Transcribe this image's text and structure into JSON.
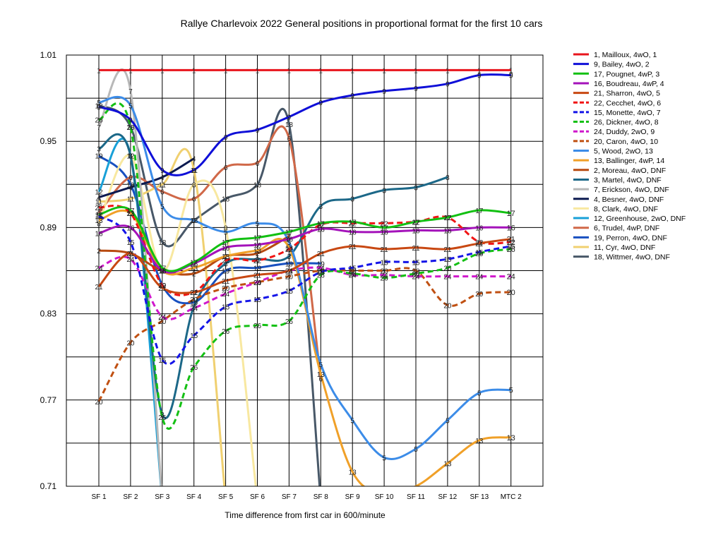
{
  "chart_data": {
    "type": "line",
    "title": "Rallye Charlevoix 2022  General positions in proportional format for the first 10 cars",
    "xlabel": "Time difference from first car in 600/minute",
    "ylabel": "",
    "x_labels": [
      "SF 1",
      "SF 2",
      "SF 3",
      "SF 4",
      "SF 5",
      "SF 6",
      "SF 7",
      "SF 8",
      "SF 9",
      "SF 10",
      "SF 11",
      "SF 12",
      "SF 13",
      "MTC 2"
    ],
    "y_tick_labels": [
      "1.01",
      "0.95",
      "0.89",
      "0.83",
      "0.77",
      "0.71"
    ],
    "ylim": [
      0.71,
      1.01
    ],
    "grid": true,
    "legend_position": "right",
    "series": [
      {
        "name": "1, Mailloux, 4wO, 1",
        "color": "#e8141c",
        "width": 3,
        "dash": "",
        "values": [
          0.9995,
          0.9995,
          0.9995,
          0.9995,
          0.9995,
          0.9995,
          0.9995,
          0.9995,
          0.9995,
          0.9995,
          0.9995,
          0.9995,
          0.9995,
          0.9995
        ],
        "positions": [
          "1",
          "1",
          "1",
          "1",
          "1",
          "1",
          "1",
          "1",
          "1",
          "1",
          "1",
          "1",
          "1",
          "1"
        ]
      },
      {
        "name": "9, Bailey, 4wO, 2",
        "color": "#0f0fd8",
        "width": 3,
        "dash": "",
        "values": [
          0.974,
          0.965,
          0.93,
          0.93,
          0.953,
          0.958,
          0.967,
          0.977,
          0.982,
          0.985,
          0.987,
          0.99,
          0.996,
          0.996
        ],
        "positions": [
          "9",
          "9",
          "9",
          "9",
          "9",
          "9",
          "9",
          "9",
          "9",
          "9",
          "9",
          "9",
          "9",
          "9"
        ]
      },
      {
        "name": "17, Pougnet, 4wP, 3",
        "color": "#12c012",
        "width": 3,
        "dash": "",
        "values": [
          0.899,
          0.902,
          0.862,
          0.866,
          0.88,
          0.883,
          0.887,
          0.893,
          0.894,
          0.89,
          0.894,
          0.897,
          0.902,
          0.9
        ],
        "positions": [
          "17",
          "17",
          "17",
          "17",
          "17",
          "17",
          "17",
          "17",
          "17",
          "17",
          "17",
          "17",
          "17",
          "17"
        ]
      },
      {
        "name": "16, Boudreau, 4wP, 4",
        "color": "#a412ba",
        "width": 3,
        "dash": "",
        "values": [
          0.886,
          0.89,
          0.86,
          0.865,
          0.876,
          0.878,
          0.882,
          0.889,
          0.887,
          0.887,
          0.888,
          0.888,
          0.89,
          0.89
        ],
        "positions": [
          "16",
          "16",
          "16",
          "16",
          "16",
          "16",
          "16",
          "16",
          "16",
          "16",
          "16",
          "16",
          "16",
          "16"
        ]
      },
      {
        "name": "21, Sharron, 4wO, 5",
        "color": "#c84812",
        "width": 3,
        "dash": "",
        "values": [
          0.849,
          0.872,
          0.848,
          0.845,
          0.853,
          0.857,
          0.86,
          0.872,
          0.877,
          0.875,
          0.876,
          0.875,
          0.879,
          0.882
        ],
        "positions": [
          "21",
          "21",
          "21",
          "21",
          "21",
          "21",
          "21",
          "21",
          "21",
          "21",
          "21",
          "21",
          "21",
          "21"
        ]
      },
      {
        "name": "22, Cecchet, 4wO, 6",
        "color": "#f01414",
        "width": 3,
        "dash": "8,5",
        "values": [
          0.904,
          0.9,
          0.85,
          0.845,
          0.867,
          0.867,
          0.875,
          0.892,
          0.893,
          0.893,
          0.894,
          0.897,
          0.88,
          0.88
        ],
        "positions": [
          "22",
          "22",
          "22",
          "22",
          "22",
          "22",
          "22",
          "22",
          "22",
          "22",
          "22",
          "22",
          "22",
          "22"
        ]
      },
      {
        "name": "15, Monette, 4wO, 7",
        "color": "#1414e8",
        "width": 3,
        "dash": "8,5",
        "values": [
          0.898,
          0.88,
          0.798,
          0.815,
          0.835,
          0.84,
          0.846,
          0.859,
          0.862,
          0.866,
          0.866,
          0.868,
          0.873,
          0.877
        ],
        "positions": [
          "15",
          "15",
          "15",
          "15",
          "15",
          "15",
          "15",
          "15",
          "15",
          "15",
          "15",
          "15",
          "15",
          "15"
        ]
      },
      {
        "name": "26, Dickner, 4wO, 8",
        "color": "#14c014",
        "width": 3,
        "dash": "8,5",
        "values": [
          0.965,
          0.96,
          0.758,
          0.793,
          0.818,
          0.822,
          0.825,
          0.857,
          0.858,
          0.855,
          0.858,
          0.862,
          0.872,
          0.875
        ],
        "positions": [
          "26",
          "26",
          "26",
          "26",
          "26",
          "26",
          "26",
          "26",
          "26",
          "26",
          "26",
          "26",
          "26",
          "26"
        ]
      },
      {
        "name": "24, Duddy, 2wO, 9",
        "color": "#d018cc",
        "width": 3,
        "dash": "8,5",
        "values": [
          0.862,
          0.868,
          0.828,
          0.834,
          0.844,
          0.852,
          0.86,
          0.862,
          0.857,
          0.857,
          0.856,
          0.856,
          0.856,
          0.856
        ],
        "positions": [
          "24",
          "24",
          "24",
          "24",
          "24",
          "24",
          "24",
          "24",
          "24",
          "24",
          "24",
          "24",
          "24",
          "24"
        ]
      },
      {
        "name": "20, Caron, 4wO, 10",
        "color": "#c05012",
        "width": 3,
        "dash": "8,5",
        "values": [
          0.769,
          0.81,
          0.825,
          0.84,
          0.848,
          0.852,
          0.856,
          0.86,
          0.86,
          0.86,
          0.86,
          0.836,
          0.844,
          0.845
        ],
        "positions": [
          "20",
          "20",
          "20",
          "20",
          "20",
          "20",
          "20",
          "20",
          "20",
          "20",
          "20",
          "20",
          "20",
          "20"
        ]
      },
      {
        "name": "5, Wood, 2wO, 13",
        "color": "#3c8ce8",
        "width": 3,
        "dash": "",
        "values": [
          0.977,
          0.975,
          0.905,
          0.895,
          0.887,
          0.893,
          0.88,
          0.795,
          0.756,
          0.73,
          0.736,
          0.756,
          0.775,
          0.777
        ],
        "positions": [
          "5",
          "5",
          "5",
          "5",
          "5",
          "5",
          "5",
          "5",
          "5",
          "5",
          "5",
          "5",
          "5",
          "5"
        ]
      },
      {
        "name": "13, Ballinger, 4wP, 14",
        "color": "#f0a028",
        "width": 3,
        "dash": "",
        "values": [
          0.895,
          0.9,
          0.86,
          0.862,
          0.87,
          0.874,
          0.876,
          0.788,
          0.72,
          0.705,
          0.71,
          0.726,
          0.742,
          0.744
        ],
        "positions": [
          "13",
          "13",
          "13",
          "13",
          "13",
          "13",
          "13",
          "13",
          "13",
          "13",
          "13",
          "13",
          "13",
          "13"
        ]
      },
      {
        "name": "2, Moreau, 4wO, DNF",
        "color": "#b84a10",
        "width": 3,
        "dash": "",
        "values": [
          0.874,
          0.872,
          0.86,
          0.858,
          0.87,
          0.872,
          0.884
        ],
        "positions": [
          "2",
          "2",
          "2",
          "2",
          "2",
          "2",
          "2"
        ]
      },
      {
        "name": "3, Martel, 4wO, DNF",
        "color": "#1c6888",
        "width": 3,
        "dash": "",
        "values": [
          0.945,
          0.94,
          0.76,
          0.835,
          0.865,
          0.868,
          0.87,
          0.905,
          0.91,
          0.916,
          0.918,
          0.925
        ],
        "positions": [
          "3",
          "3",
          "3",
          "3",
          "3",
          "3",
          "3",
          "3",
          "3",
          "3",
          "3",
          "3"
        ]
      },
      {
        "name": "7, Erickson, 4wO, DNF",
        "color": "#b8b8b8",
        "width": 3,
        "dash": "",
        "values": [
          0.96,
          0.985,
          0.7
        ],
        "positions": [
          "7",
          "7",
          ""
        ]
      },
      {
        "name": "4, Besner, 4wO, DNF",
        "color": "#0c1a50",
        "width": 3,
        "dash": "",
        "values": [
          0.911,
          0.918,
          0.925,
          0.938
        ],
        "positions": [
          "4",
          "4",
          "4",
          "4"
        ]
      },
      {
        "name": "8, Clark, 4wO, DNF",
        "color": "#f8e8a0",
        "width": 3,
        "dash": "",
        "values": [
          0.893,
          0.94,
          0.86,
          0.92,
          0.89,
          0.7
        ],
        "positions": [
          "8",
          "8",
          "8",
          "8",
          "8",
          ""
        ]
      },
      {
        "name": "12, Greenhouse, 2wO, DNF",
        "color": "#18a0d8",
        "width": 3,
        "dash": "",
        "values": [
          0.915,
          0.94,
          0.7
        ],
        "positions": [
          "12",
          "12",
          ""
        ]
      },
      {
        "name": "6, Trudel, 4wP, DNF",
        "color": "#d06848",
        "width": 3,
        "dash": "",
        "values": [
          0.9,
          0.925,
          0.915,
          0.91,
          0.932,
          0.935,
          0.952,
          0.785
        ],
        "positions": [
          "6",
          "6",
          "6",
          "6",
          "6",
          "6",
          "6",
          "6"
        ]
      },
      {
        "name": "19, Perron, 4wO, DNF",
        "color": "#1850c0",
        "width": 3,
        "dash": "",
        "values": [
          0.94,
          0.92,
          0.85,
          0.838,
          0.86,
          0.862,
          0.865,
          0.865
        ],
        "positions": [
          "19",
          "19",
          "19",
          "19",
          "19",
          "19",
          "19",
          "19"
        ]
      },
      {
        "name": "11, Cyr, 4wO, DNF",
        "color": "#f0d070",
        "width": 3,
        "dash": "",
        "values": [
          0.908,
          0.91,
          0.92,
          0.93,
          0.7
        ],
        "positions": [
          "11",
          "11",
          "11",
          "11",
          ""
        ]
      },
      {
        "name": "18, Wittmer, 4wO, DNF",
        "color": "#485868",
        "width": 3,
        "dash": "",
        "values": [
          0.975,
          0.96,
          0.88,
          0.895,
          0.91,
          0.92,
          0.962,
          0.7
        ],
        "positions": [
          "18",
          "18",
          "18",
          "18",
          "18",
          "18",
          "18",
          ""
        ]
      }
    ]
  }
}
